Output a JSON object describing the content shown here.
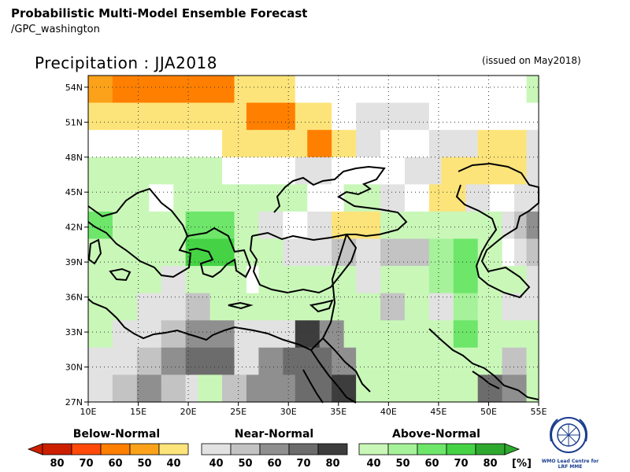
{
  "header": {
    "title": "Probabilistic Multi-Model Ensemble Forecast",
    "subtitle": "/GPC_washington"
  },
  "map": {
    "title": "Precipitation : JJA2018",
    "issued": "(issued on May2018)",
    "lon_labels": [
      "10E",
      "15E",
      "20E",
      "25E",
      "30E",
      "35E",
      "40E",
      "45E",
      "50E",
      "55E"
    ],
    "lat_labels": [
      "54N",
      "51N",
      "48N",
      "45N",
      "42N",
      "39N",
      "36N",
      "33N",
      "30N",
      "27N"
    ],
    "region": {
      "lon_min": 10,
      "lon_max": 55,
      "lat_min": 27,
      "lat_max": 55
    }
  },
  "legend": {
    "below": {
      "title": "Below-Normal",
      "labels": [
        "80",
        "70",
        "60",
        "50",
        "40"
      ],
      "colors": [
        "#cc1f00",
        "#ff4a0a",
        "#ff7f00",
        "#fba21a",
        "#fde47a"
      ]
    },
    "near": {
      "title": "Near-Normal",
      "labels": [
        "40",
        "50",
        "60",
        "70",
        "80"
      ],
      "colors": [
        "#e2e2e2",
        "#c3c3c3",
        "#8f8f8f",
        "#6c6c6c",
        "#3d3d3d"
      ]
    },
    "above": {
      "title": "Above-Normal",
      "labels": [
        "40",
        "50",
        "60",
        "70",
        "80"
      ],
      "colors": [
        "#c9f7b8",
        "#a6f29a",
        "#6de66a",
        "#45d345",
        "#2ea82e"
      ]
    },
    "unit": "[%]"
  },
  "logo": {
    "text": "WMO Lead Centre for LRF MME"
  },
  "grid_data": {
    "legend_codes": "0=no signal, B1..B5=below-normal (40,50,60,70,80), N1..N5=near-normal, A1..A5=above-normal",
    "cell_size_deg": 2.5,
    "rows": [
      "B2 B2 B3 B3 B3 B3 B3 B3 B3 B3 B3 B3 B1 B1 B1 B1 B1 0 0 0 0 0 0 0 0 0 0 0 0 0 0 0 0 0 0 0 A1",
      "B1 B1 B1 B1 B1 B1 B1 B1 B1 B1 B1 B1 B1 B3 B3 B3 B3 B1 B1 B1 0 0 N1 N1 N1 N1 N1 N1 0 0 0 0 0 0 0 0 0",
      "0 0 0 0 0 0 0 0 0 0 0 B1 B1 B1 B1 B1 B1 B1 B3 B3 B1 B1 N1 N1 0 0 0 0 N1 N1 N1 N1 B1 B1 B1 B1 N1",
      "A1 A1 A1 A1 A1 A1 A1 A1 A1 A1 A1 0 0 0 0 0 0 N1 N1 N1 0 0 0 0 0 0 N1 N1 N1 B1 B1 B1 B1 B1 B1 B1 N1",
      "A1 A1 A1 A1 A1 0 0 A1 A1 A1 A1 A1 A1 A1 A1 A1 A1 A1 0 0 0 A1 A1 A1 N1 N1 0 0 B1 B1 B1 N1 N1 0 0 N1 N1",
      "A3 A3 A1 A1 A1 A1 A1 A1 A3 A3 A3 A3 A1 A1 N1 N1 0 0 N1 N1 B1 B1 B1 B1 A1 A1 A1 A1 A1 A1 A1 A1 A1 A1 N1 N2 N3",
      "A1 A1 A1 A1 A1 A1 A1 A1 A4 A4 A4 A4 A1 A1 A1 A1 N1 N1 N1 N1 N2 N2 N1 N1 N2 N2 N2 N2 A2 A2 A3 A3 A1 A1 0 N1 N2",
      "A1 A1 A1 A1 A1 A1 N1 N1 A1 A1 A1 A1 A1 0 A1 A1 A1 A1 A1 A1 A1 A1 N1 N1 A1 A1 A1 A1 A2 A2 A3 A3 A1 A1 A1 A1 N1",
      "A1 A1 A1 A1 N1 N1 N1 N1 N2 N2 A1 A1 A1 A1 A1 A1 A1 A1 A1 A1 A1 A1 A1 A1 N2 N2 A1 A1 N1 N1 A2 A2 A1 A1 N1 N1 N1",
      "A1 A1 N1 N1 N1 N1 N2 N2 N3 N3 N3 N3 N1 N1 N1 N1 N1 N5 N5 N3 N3 A1 A1 A1 A1 A1 A1 A1 A1 A1 A3 A3 A1 A1 A1 A1 A1",
      "N1 N1 N1 N1 N2 N2 N3 N3 N4 N4 N4 N4 N1 N1 N3 N3 N4 N4 N4 N4 N3 N3 A1 A1 A1 A1 A1 A1 A1 A1 A1 A1 A1 A1 N2 N2 A1",
      "N1 N1 N2 N2 N3 N3 N2 N2 N1 A1 A1 N2 N2 N3 N3 N3 N3 N4 N4 N4 N5 N5 A1 A1 A1 A1 A1 A1 A1 A1 A1 A1 N4 N4 N3 N3 A1"
    ]
  }
}
